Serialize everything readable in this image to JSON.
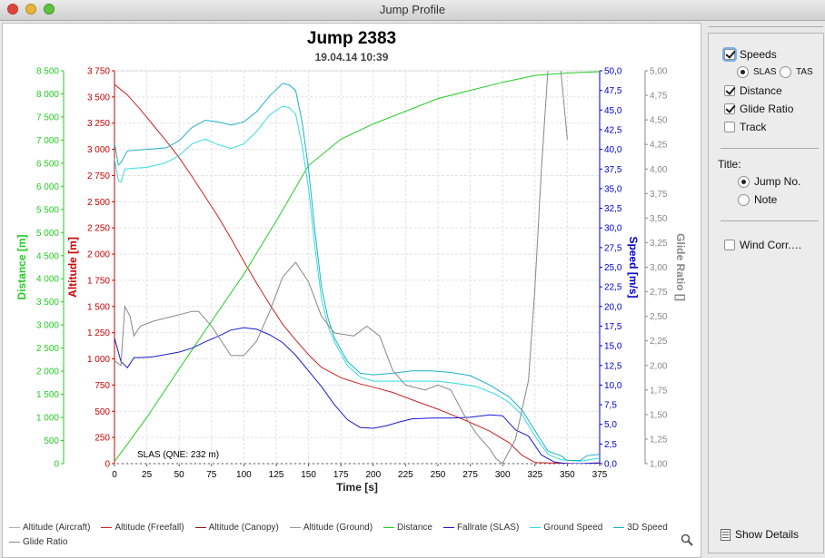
{
  "window": {
    "title": "Jump Profile"
  },
  "chart_data": {
    "type": "line",
    "title": "Jump 2383",
    "subtitle": "19.04.14 10:39",
    "annotation": "SLAS (QNE: 232 m)",
    "xlabel": "Time [s]",
    "xlim": [
      0,
      375
    ],
    "xticks": [
      "0",
      "25",
      "50",
      "75",
      "100",
      "125",
      "150",
      "175",
      "200",
      "225",
      "250",
      "275",
      "300",
      "325",
      "350",
      "375"
    ],
    "axes": {
      "distance": {
        "label": "Distance [m]",
        "range": [
          0,
          8500
        ],
        "color": "#22cc22",
        "ticks": [
          "0",
          "500",
          "1 000",
          "1 500",
          "2 000",
          "2 500",
          "3 000",
          "3 500",
          "4 000",
          "4 500",
          "5 000",
          "5 500",
          "6 000",
          "6 500",
          "7 000",
          "7 500",
          "8 000",
          "8 500"
        ]
      },
      "altitude": {
        "label": "Altitude [m]",
        "range": [
          0,
          3750
        ],
        "color": "#cc0000",
        "ticks": [
          "0",
          "250",
          "500",
          "750",
          "1 000",
          "1 250",
          "1 500",
          "1 750",
          "2 000",
          "2 250",
          "2 500",
          "2 750",
          "3 000",
          "3 250",
          "3 500",
          "3 750"
        ]
      },
      "speed": {
        "label": "Speed [m/s]",
        "range": [
          0,
          50
        ],
        "color": "#0000cc",
        "ticks": [
          "0,0",
          "2,5",
          "5,0",
          "7,5",
          "10,0",
          "12,5",
          "15,0",
          "17,5",
          "20,0",
          "22,5",
          "25,0",
          "27,5",
          "30,0",
          "32,5",
          "35,0",
          "37,5",
          "40,0",
          "42,5",
          "45,0",
          "47,5",
          "50,0"
        ]
      },
      "glide": {
        "label": "Glide Ratio []",
        "range": [
          1.0,
          5.0
        ],
        "color": "#888888",
        "ticks": [
          "1,00",
          "1,25",
          "1,50",
          "1,75",
          "2,00",
          "2,25",
          "2,50",
          "2,75",
          "3,00",
          "3,25",
          "3,50",
          "3,75",
          "4,00",
          "4,25",
          "4,50",
          "4,75",
          "5,00"
        ]
      }
    },
    "series": [
      {
        "name": "Altitude (Freefall)",
        "axis": "altitude",
        "color": "#cc2222",
        "points": [
          [
            0,
            3620
          ],
          [
            10,
            3520
          ],
          [
            20,
            3380
          ],
          [
            30,
            3230
          ],
          [
            40,
            3080
          ],
          [
            50,
            2920
          ],
          [
            60,
            2740
          ],
          [
            70,
            2550
          ],
          [
            80,
            2360
          ],
          [
            90,
            2150
          ],
          [
            100,
            1930
          ],
          [
            110,
            1720
          ],
          [
            120,
            1520
          ],
          [
            130,
            1330
          ],
          [
            140,
            1180
          ],
          [
            150,
            1040
          ],
          [
            160,
            920
          ],
          [
            175,
            820
          ],
          [
            190,
            760
          ],
          [
            200,
            730
          ],
          [
            215,
            680
          ],
          [
            230,
            610
          ],
          [
            250,
            520
          ],
          [
            270,
            420
          ],
          [
            290,
            310
          ],
          [
            305,
            200
          ],
          [
            315,
            80
          ],
          [
            325,
            10
          ],
          [
            340,
            5
          ],
          [
            360,
            0
          ],
          [
            375,
            0
          ]
        ]
      },
      {
        "name": "Altitude (Ground)",
        "axis": "altitude",
        "color": "#999999",
        "points": []
      },
      {
        "name": "Distance",
        "axis": "distance",
        "color": "#22cc22",
        "points": [
          [
            0,
            50
          ],
          [
            10,
            420
          ],
          [
            25,
            1000
          ],
          [
            50,
            2050
          ],
          [
            75,
            3080
          ],
          [
            100,
            4100
          ],
          [
            125,
            5250
          ],
          [
            150,
            6450
          ],
          [
            175,
            7020
          ],
          [
            200,
            7350
          ],
          [
            250,
            7900
          ],
          [
            300,
            8250
          ],
          [
            325,
            8400
          ],
          [
            350,
            8450
          ],
          [
            375,
            8480
          ]
        ]
      },
      {
        "name": "Fallrate (SLAS)",
        "axis": "speed",
        "color": "#1a1acc",
        "points": [
          [
            0,
            16.0
          ],
          [
            5,
            13
          ],
          [
            10,
            12.2
          ],
          [
            15,
            13.5
          ],
          [
            20,
            13.5
          ],
          [
            30,
            13.6
          ],
          [
            40,
            13.9
          ],
          [
            50,
            14.2
          ],
          [
            60,
            14.7
          ],
          [
            70,
            15.5
          ],
          [
            80,
            16.2
          ],
          [
            90,
            17.0
          ],
          [
            100,
            17.3
          ],
          [
            110,
            17.1
          ],
          [
            120,
            16.4
          ],
          [
            130,
            15.4
          ],
          [
            140,
            13.8
          ],
          [
            150,
            11.8
          ],
          [
            160,
            9.8
          ],
          [
            170,
            7.5
          ],
          [
            180,
            5.6
          ],
          [
            190,
            4.6
          ],
          [
            200,
            4.5
          ],
          [
            210,
            4.8
          ],
          [
            220,
            5.3
          ],
          [
            230,
            5.7
          ],
          [
            245,
            5.8
          ],
          [
            260,
            5.8
          ],
          [
            275,
            5.9
          ],
          [
            290,
            6.2
          ],
          [
            300,
            6.1
          ],
          [
            310,
            4.3
          ],
          [
            320,
            3.5
          ],
          [
            330,
            1.1
          ],
          [
            340,
            0.2
          ],
          [
            350,
            0
          ],
          [
            360,
            0
          ],
          [
            375,
            0.1
          ]
        ]
      },
      {
        "name": "Ground Speed",
        "axis": "speed",
        "color": "#33dddd",
        "points": [
          [
            0,
            38.8
          ],
          [
            3,
            36
          ],
          [
            5,
            35.8
          ],
          [
            8,
            37.5
          ],
          [
            15,
            37.6
          ],
          [
            25,
            37.7
          ],
          [
            40,
            38.3
          ],
          [
            50,
            39.2
          ],
          [
            60,
            40.7
          ],
          [
            70,
            41.3
          ],
          [
            80,
            40.6
          ],
          [
            90,
            40.1
          ],
          [
            100,
            40.7
          ],
          [
            110,
            42.3
          ],
          [
            120,
            44.4
          ],
          [
            130,
            45.5
          ],
          [
            135,
            45.3
          ],
          [
            140,
            44.5
          ],
          [
            145,
            40.5
          ],
          [
            150,
            35.0
          ],
          [
            155,
            27.5
          ],
          [
            160,
            21.0
          ],
          [
            165,
            17.5
          ],
          [
            170,
            15.5
          ],
          [
            180,
            12.5
          ],
          [
            190,
            11.0
          ],
          [
            200,
            10.5
          ],
          [
            215,
            10.5
          ],
          [
            230,
            10.5
          ],
          [
            250,
            10.5
          ],
          [
            265,
            10.2
          ],
          [
            280,
            9.8
          ],
          [
            295,
            8.8
          ],
          [
            305,
            7.8
          ],
          [
            315,
            6.2
          ],
          [
            325,
            3.5
          ],
          [
            335,
            1.2
          ],
          [
            345,
            0.5
          ],
          [
            360,
            0.3
          ],
          [
            375,
            0.7
          ]
        ]
      },
      {
        "name": "3D Speed",
        "axis": "speed",
        "color": "#20b0c8",
        "points": [
          [
            0,
            40.8
          ],
          [
            3,
            38
          ],
          [
            5,
            38.3
          ],
          [
            10,
            39.8
          ],
          [
            25,
            40.0
          ],
          [
            40,
            40.2
          ],
          [
            50,
            41.1
          ],
          [
            60,
            42.8
          ],
          [
            70,
            43.7
          ],
          [
            80,
            43.5
          ],
          [
            90,
            43.1
          ],
          [
            100,
            43.5
          ],
          [
            110,
            44.8
          ],
          [
            120,
            46.8
          ],
          [
            130,
            48.4
          ],
          [
            135,
            48.2
          ],
          [
            140,
            47.5
          ],
          [
            145,
            43.5
          ],
          [
            150,
            37.5
          ],
          [
            155,
            29.5
          ],
          [
            160,
            22.5
          ],
          [
            165,
            18.5
          ],
          [
            170,
            16.0
          ],
          [
            180,
            13.0
          ],
          [
            190,
            11.5
          ],
          [
            200,
            11.3
          ],
          [
            215,
            11.5
          ],
          [
            230,
            11.8
          ],
          [
            245,
            11.8
          ],
          [
            260,
            11.6
          ],
          [
            275,
            11.2
          ],
          [
            290,
            10.0
          ],
          [
            305,
            8.5
          ],
          [
            315,
            6.8
          ],
          [
            325,
            4.2
          ],
          [
            335,
            1.6
          ],
          [
            345,
            1.0
          ],
          [
            350,
            0.4
          ],
          [
            360,
            0.4
          ],
          [
            365,
            1.0
          ],
          [
            375,
            1.2
          ]
        ]
      },
      {
        "name": "Glide Ratio",
        "axis": "glide",
        "color": "#888888",
        "points": [
          [
            0,
            2.05
          ],
          [
            5,
            2.0
          ],
          [
            8,
            2.6
          ],
          [
            12,
            2.5
          ],
          [
            15,
            2.3
          ],
          [
            20,
            2.4
          ],
          [
            30,
            2.45
          ],
          [
            45,
            2.5
          ],
          [
            60,
            2.55
          ],
          [
            65,
            2.55
          ],
          [
            75,
            2.4
          ],
          [
            90,
            2.1
          ],
          [
            100,
            2.1
          ],
          [
            110,
            2.25
          ],
          [
            120,
            2.55
          ],
          [
            130,
            2.9
          ],
          [
            140,
            3.05
          ],
          [
            150,
            2.85
          ],
          [
            160,
            2.5
          ],
          [
            170,
            2.33
          ],
          [
            185,
            2.3
          ],
          [
            195,
            2.4
          ],
          [
            205,
            2.3
          ],
          [
            215,
            1.95
          ],
          [
            225,
            1.8
          ],
          [
            240,
            1.75
          ],
          [
            250,
            1.8
          ],
          [
            260,
            1.75
          ],
          [
            270,
            1.5
          ],
          [
            280,
            1.3
          ],
          [
            290,
            1.15
          ],
          [
            295,
            1.05
          ],
          [
            300,
            1.0
          ],
          [
            310,
            1.25
          ],
          [
            320,
            1.85
          ],
          [
            325,
            2.8
          ],
          [
            330,
            4.0
          ],
          [
            335,
            5.0
          ],
          [
            340,
            5.5
          ],
          [
            345,
            5.0
          ],
          [
            350,
            4.3
          ]
        ]
      }
    ],
    "legend_position": "bottom",
    "legend": [
      {
        "name": "Altitude (Aircraft)",
        "color": "#b0b0b0"
      },
      {
        "name": "Altitude (Freefall)",
        "color": "#cc2222"
      },
      {
        "name": "Altitude (Canopy)",
        "color": "#8b1a1a"
      },
      {
        "name": "Altitude (Ground)",
        "color": "#999999"
      },
      {
        "name": "Distance",
        "color": "#22cc22"
      },
      {
        "name": "Fallrate (SLAS)",
        "color": "#1a1acc"
      },
      {
        "name": "Ground Speed",
        "color": "#33dddd"
      },
      {
        "name": "3D Speed",
        "color": "#20b0c8"
      },
      {
        "name": "Glide Ratio",
        "color": "#888888"
      }
    ]
  },
  "sidebar": {
    "speeds": {
      "label": "Speeds",
      "checked": true
    },
    "slas": {
      "label": "SLAS",
      "selected": true
    },
    "tas": {
      "label": "TAS",
      "selected": false
    },
    "distance": {
      "label": "Distance",
      "checked": true
    },
    "glide_ratio": {
      "label": "Glide Ratio",
      "checked": true
    },
    "track": {
      "label": "Track",
      "checked": false
    },
    "title_group": {
      "label": "Title:"
    },
    "jump_no": {
      "label": "Jump No.",
      "selected": true
    },
    "note": {
      "label": "Note",
      "selected": false
    },
    "wind_corr": {
      "label": "Wind Corr.…",
      "checked": false
    },
    "show_details": {
      "label": "Show Details"
    }
  }
}
